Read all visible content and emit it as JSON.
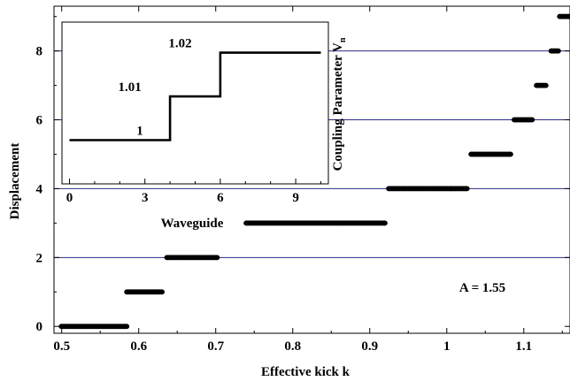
{
  "chart_data": [
    {
      "type": "scatter",
      "title": "",
      "xlabel": "Effective kick  k",
      "ylabel": "Displacement",
      "xlim": [
        0.49,
        1.16
      ],
      "ylim": [
        -0.2,
        9.3
      ],
      "xticks": [
        "0.5",
        "0.6",
        "0.7",
        "0.8",
        "0.9",
        "1",
        "1.1"
      ],
      "yticks": [
        "0",
        "2",
        "4",
        "6",
        "8"
      ],
      "xtick_values": [
        0.5,
        0.6,
        0.7,
        0.8,
        0.9,
        1.0,
        1.1
      ],
      "ytick_values": [
        0,
        2,
        4,
        6,
        8
      ],
      "gridlines_y": [
        2,
        4,
        6,
        8
      ],
      "annotation": "A = 1.55",
      "plateaus": [
        {
          "y": 0,
          "x_start": 0.5,
          "x_end": 0.585
        },
        {
          "y": 1,
          "x_start": 0.585,
          "x_end": 0.632
        },
        {
          "y": 2,
          "x_start": 0.637,
          "x_end": 0.702
        },
        {
          "y": 3,
          "x_start": 0.74,
          "x_end": 0.92
        },
        {
          "y": 4,
          "x_start": 0.925,
          "x_end": 1.027
        },
        {
          "y": 5,
          "x_start": 1.032,
          "x_end": 1.085
        },
        {
          "y": 6,
          "x_start": 1.088,
          "x_end": 1.112
        },
        {
          "y": 7,
          "x_start": 1.117,
          "x_end": 1.13
        },
        {
          "y": 8,
          "x_start": 1.136,
          "x_end": 1.145
        },
        {
          "y": 9,
          "x_start": 1.147,
          "x_end": 1.16
        }
      ]
    },
    {
      "type": "line",
      "title": "",
      "xlabel": "Waveguide",
      "ylabel": "Coupling Parameter V",
      "ylabel_subscript": "n",
      "xlim": [
        -0.3,
        10.3
      ],
      "ylim": [
        0.99,
        1.027
      ],
      "xticks": [
        "0",
        "3",
        "6",
        "9"
      ],
      "xtick_values": [
        0,
        3,
        6,
        9
      ],
      "step_line": [
        [
          0,
          1.0
        ],
        [
          4,
          1.0
        ],
        [
          4,
          1.01
        ],
        [
          6,
          1.01
        ],
        [
          6,
          1.02
        ],
        [
          10,
          1.02
        ]
      ],
      "level_labels": [
        {
          "text": "1",
          "x": 2.8,
          "y": 1.0
        },
        {
          "text": "1.01",
          "x": 2.4,
          "y": 1.01
        },
        {
          "text": "1.02",
          "x": 4.4,
          "y": 1.02
        }
      ]
    }
  ]
}
